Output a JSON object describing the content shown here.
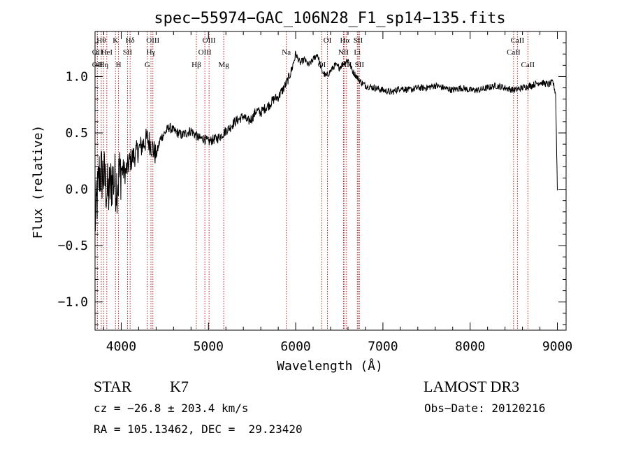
{
  "chart_data": {
    "type": "line",
    "title": "spec−55974−GAC_106N28_F1_sp14−135.fits",
    "xlabel": "Wavelength (Å)",
    "ylabel": "Flux (relative)",
    "xlim": [
      3700,
      9100
    ],
    "ylim": [
      -1.25,
      1.4
    ],
    "xticks": [
      4000,
      5000,
      6000,
      7000,
      8000,
      9000
    ],
    "xtick_labels": [
      "4000",
      "5000",
      "6000",
      "7000",
      "8000",
      "9000"
    ],
    "yticks": [
      -1.0,
      -0.5,
      0.0,
      0.5,
      1.0
    ],
    "ytick_labels": [
      "−1.0",
      "−0.5",
      "0.0",
      "0.5",
      "1.0"
    ],
    "grid": false,
    "line_color": "#000000",
    "marker_color": "#b22222",
    "spectrum": {
      "name": "flux",
      "x": [
        3700,
        3750,
        3800,
        3850,
        3900,
        3950,
        4000,
        4050,
        4100,
        4150,
        4200,
        4250,
        4300,
        4350,
        4400,
        4450,
        4500,
        4550,
        4600,
        4650,
        4700,
        4750,
        4800,
        4850,
        4900,
        4950,
        5000,
        5050,
        5100,
        5150,
        5200,
        5250,
        5300,
        5350,
        5400,
        5450,
        5500,
        5550,
        5600,
        5650,
        5700,
        5750,
        5800,
        5850,
        5900,
        5950,
        6000,
        6050,
        6100,
        6150,
        6200,
        6250,
        6300,
        6350,
        6400,
        6450,
        6500,
        6550,
        6600,
        6650,
        6700,
        6750,
        6800,
        6900,
        7000,
        7100,
        7200,
        7300,
        7400,
        7500,
        7600,
        7700,
        7800,
        7900,
        8000,
        8100,
        8200,
        8300,
        8400,
        8500,
        8600,
        8700,
        8800,
        8900,
        8950,
        8980,
        9000
      ],
      "y": [
        -0.3,
        0.15,
        0.12,
        -0.05,
        0.1,
        0.05,
        0.18,
        0.15,
        0.25,
        0.3,
        0.35,
        0.4,
        0.45,
        0.38,
        0.3,
        0.45,
        0.5,
        0.55,
        0.52,
        0.5,
        0.48,
        0.5,
        0.52,
        0.48,
        0.45,
        0.45,
        0.42,
        0.44,
        0.45,
        0.48,
        0.52,
        0.55,
        0.6,
        0.62,
        0.65,
        0.6,
        0.63,
        0.7,
        0.68,
        0.72,
        0.75,
        0.8,
        0.82,
        0.88,
        0.95,
        1.05,
        1.2,
        1.12,
        1.15,
        1.1,
        1.15,
        1.2,
        1.05,
        1.0,
        1.05,
        1.1,
        1.08,
        1.12,
        1.15,
        1.05,
        1.0,
        0.95,
        0.92,
        0.9,
        0.88,
        0.86,
        0.9,
        0.88,
        0.9,
        0.9,
        0.92,
        0.9,
        0.88,
        0.9,
        0.88,
        0.88,
        0.9,
        0.92,
        0.9,
        0.88,
        0.9,
        0.92,
        0.95,
        0.93,
        0.95,
        0.85,
        0.0
      ]
    },
    "line_markers": [
      {
        "x": 3771,
        "label": "Hθ",
        "row": 0
      },
      {
        "x": 3727,
        "label": "OII",
        "row": 1
      },
      {
        "x": 3835,
        "label": "HeI",
        "row": 1
      },
      {
        "x": 3727,
        "label": "OII",
        "row": 2
      },
      {
        "x": 3798,
        "label": "Hη",
        "row": 2
      },
      {
        "x": 3934,
        "label": "K",
        "row": 0
      },
      {
        "x": 3969,
        "label": "H",
        "row": 2
      },
      {
        "x": 4072,
        "label": "SII",
        "row": 1
      },
      {
        "x": 4102,
        "label": "Hδ",
        "row": 0
      },
      {
        "x": 4300,
        "label": "G",
        "row": 2
      },
      {
        "x": 4341,
        "label": "Hγ",
        "row": 1
      },
      {
        "x": 4363,
        "label": "OIII",
        "row": 0
      },
      {
        "x": 4861,
        "label": "Hβ",
        "row": 2
      },
      {
        "x": 4959,
        "label": "OIII",
        "row": 1
      },
      {
        "x": 5007,
        "label": "OIII",
        "row": 0
      },
      {
        "x": 5175,
        "label": "Mg",
        "row": 2
      },
      {
        "x": 5893,
        "label": "Na",
        "row": 1
      },
      {
        "x": 6300,
        "label": "OI",
        "row": 2
      },
      {
        "x": 6364,
        "label": "OI",
        "row": 0
      },
      {
        "x": 6548,
        "label": "NII",
        "row": 1
      },
      {
        "x": 6563,
        "label": "Hα",
        "row": 0
      },
      {
        "x": 6583,
        "label": "NII",
        "row": 2
      },
      {
        "x": 6707,
        "label": "Li",
        "row": 1
      },
      {
        "x": 6716,
        "label": "SII",
        "row": 0
      },
      {
        "x": 6731,
        "label": "SII",
        "row": 2
      },
      {
        "x": 8498,
        "label": "CaII",
        "row": 1
      },
      {
        "x": 8542,
        "label": "CaII",
        "row": 0
      },
      {
        "x": 8662,
        "label": "CaII",
        "row": 2
      }
    ]
  },
  "footer": {
    "object_class": "STAR",
    "subclass": "K7",
    "survey": "LAMOST DR3",
    "cz": "cz = −26.8 ± 203.4 km/s",
    "obs_date": "Obs−Date: 20120216",
    "coords": "RA = 105.13462, DEC =  29.23420"
  }
}
